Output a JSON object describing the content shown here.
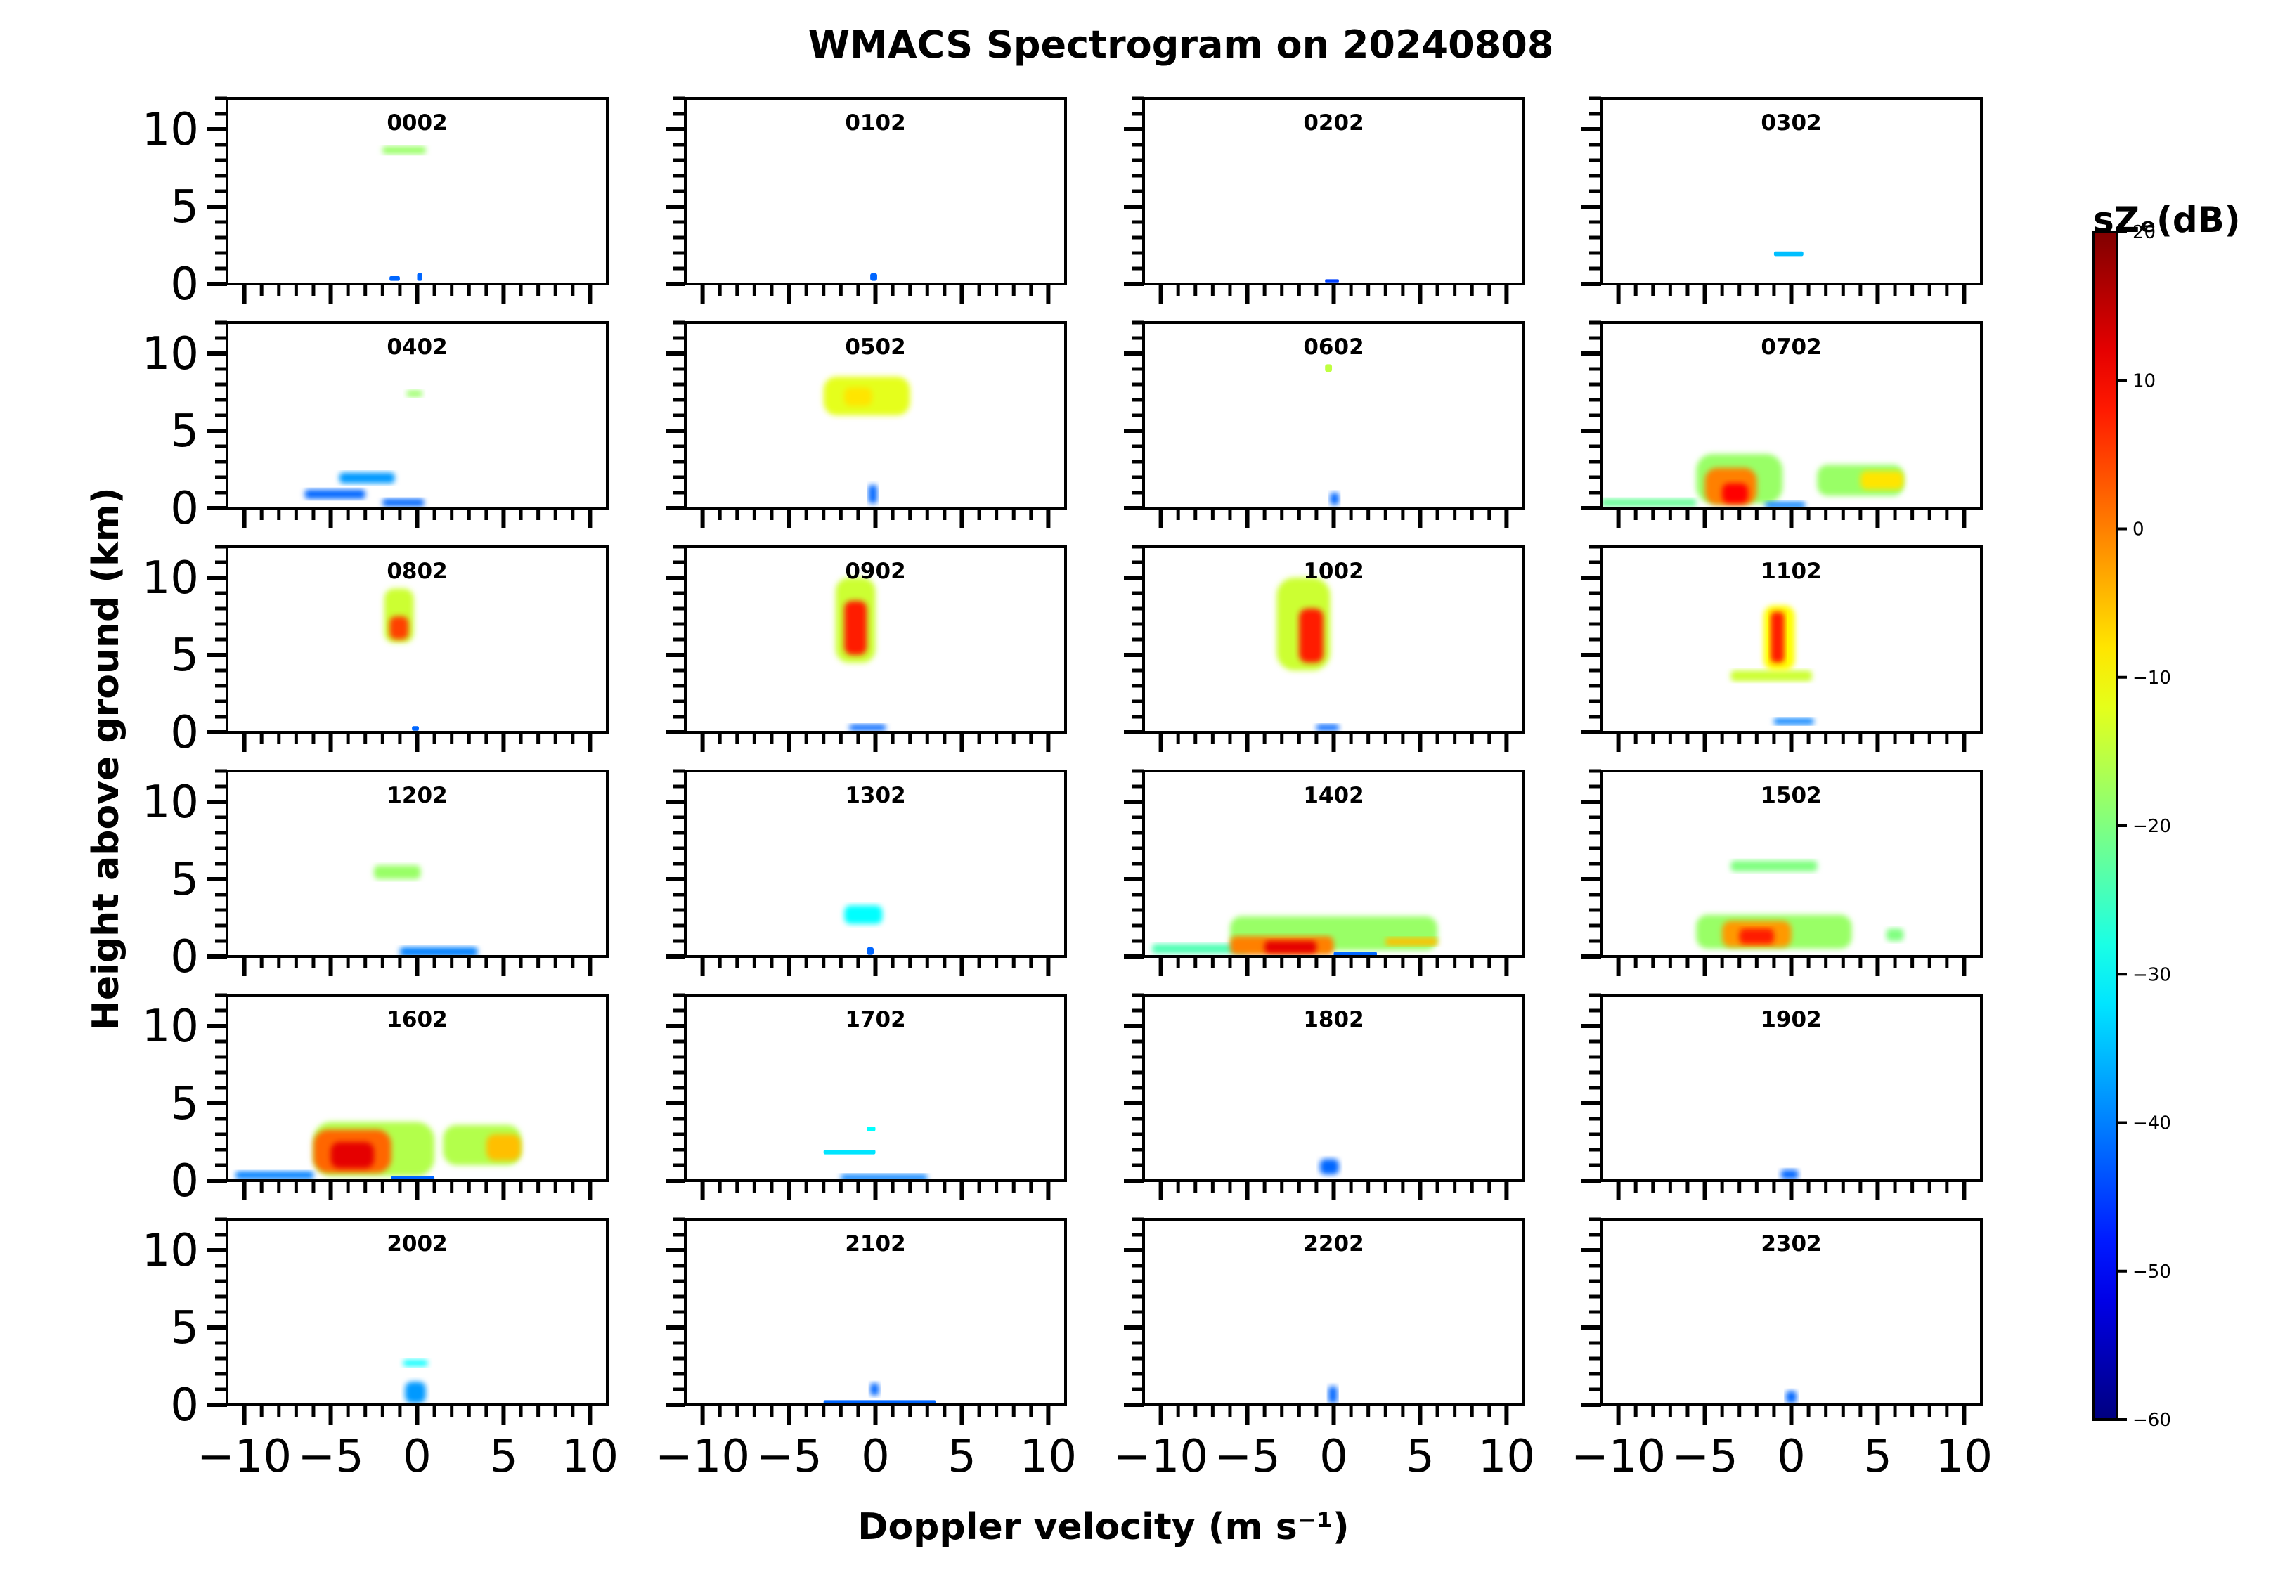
{
  "chart_data": {
    "type": "heatmap",
    "title": "WMACS Spectrogram on 20240808",
    "xlabel": "Doppler velocity (m s⁻¹)",
    "ylabel": "Height above ground (km)",
    "xlim": [
      -11,
      11
    ],
    "ylim": [
      0,
      12
    ],
    "xticks": [
      -10,
      -5,
      0,
      5,
      10
    ],
    "xtick_labels": [
      "−10",
      "−5",
      "0",
      "5",
      "10"
    ],
    "yticks": [
      0,
      5,
      10
    ],
    "ytick_labels": [
      "0",
      "5",
      "10"
    ],
    "grid": false,
    "colorbar": {
      "label": "sZₑ(dB)",
      "min": -60,
      "max": 20,
      "ticks": [
        -60,
        -50,
        -40,
        -30,
        -20,
        -10,
        0,
        10,
        20
      ],
      "tick_labels": [
        "−60",
        "−50",
        "−40",
        "−30",
        "−20",
        "−10",
        "0",
        "10",
        "20"
      ],
      "colormap": "jet"
    },
    "panels": [
      {
        "title": "0002",
        "blobs": [
          {
            "x": [
              -2.0,
              0.5
            ],
            "y": [
              8.4,
              8.9
            ],
            "db": -18
          },
          {
            "x": [
              -1.6,
              -1.0
            ],
            "y": [
              0.2,
              0.5
            ],
            "db": -42
          },
          {
            "x": [
              0.0,
              0.3
            ],
            "y": [
              0.2,
              0.7
            ],
            "db": -42
          }
        ]
      },
      {
        "title": "0102",
        "blobs": [
          {
            "x": [
              -0.3,
              0.1
            ],
            "y": [
              0.2,
              0.7
            ],
            "db": -42
          }
        ]
      },
      {
        "title": "0202",
        "blobs": [
          {
            "x": [
              -0.5,
              0.3
            ],
            "y": [
              0.1,
              0.3
            ],
            "db": -45
          }
        ]
      },
      {
        "title": "0302",
        "blobs": [
          {
            "x": [
              -1.0,
              0.7
            ],
            "y": [
              1.8,
              2.1
            ],
            "db": -35
          }
        ]
      },
      {
        "title": "0402",
        "blobs": [
          {
            "x": [
              -0.6,
              0.3
            ],
            "y": [
              7.2,
              7.6
            ],
            "db": -18
          },
          {
            "x": [
              -4.5,
              -1.3
            ],
            "y": [
              1.6,
              2.3
            ],
            "db": -38
          },
          {
            "x": [
              -6.5,
              -3.0
            ],
            "y": [
              0.6,
              1.2
            ],
            "db": -42
          },
          {
            "x": [
              -2.0,
              0.4
            ],
            "y": [
              0.1,
              0.6
            ],
            "db": -42
          }
        ]
      },
      {
        "title": "0502",
        "blobs": [
          {
            "x": [
              -3.0,
              2.0
            ],
            "y": [
              6.0,
              8.5
            ],
            "db": -12
          },
          {
            "x": [
              -1.8,
              -0.2
            ],
            "y": [
              6.6,
              7.8
            ],
            "db": -8
          },
          {
            "x": [
              -0.4,
              0.1
            ],
            "y": [
              0.3,
              1.5
            ],
            "db": -42
          }
        ]
      },
      {
        "title": "0602",
        "blobs": [
          {
            "x": [
              -0.5,
              -0.1
            ],
            "y": [
              8.8,
              9.3
            ],
            "db": -15
          },
          {
            "x": [
              -0.2,
              0.3
            ],
            "y": [
              0.2,
              1.0
            ],
            "db": -42
          }
        ]
      },
      {
        "title": "0702",
        "blobs": [
          {
            "x": [
              -5.5,
              -0.5
            ],
            "y": [
              0.3,
              3.5
            ],
            "db": -18
          },
          {
            "x": [
              -5.0,
              -2.0
            ],
            "y": [
              0.2,
              2.6
            ],
            "db": 0
          },
          {
            "x": [
              -4.0,
              -2.5
            ],
            "y": [
              0.3,
              1.6
            ],
            "db": 10
          },
          {
            "x": [
              -11.0,
              -5.5
            ],
            "y": [
              0.1,
              0.6
            ],
            "db": -22
          },
          {
            "x": [
              1.5,
              6.5
            ],
            "y": [
              0.8,
              2.8
            ],
            "db": -18
          },
          {
            "x": [
              4.0,
              6.5
            ],
            "y": [
              1.2,
              2.4
            ],
            "db": -8
          },
          {
            "x": [
              -1.5,
              0.8
            ],
            "y": [
              0.0,
              0.4
            ],
            "db": -40
          }
        ]
      },
      {
        "title": "0802",
        "blobs": [
          {
            "x": [
              -1.9,
              -0.2
            ],
            "y": [
              5.8,
              9.3
            ],
            "db": -14
          },
          {
            "x": [
              -1.6,
              -0.5
            ],
            "y": [
              6.0,
              7.5
            ],
            "db": 5
          },
          {
            "x": [
              -0.3,
              0.1
            ],
            "y": [
              0.1,
              0.4
            ],
            "db": -42
          }
        ]
      },
      {
        "title": "0902",
        "blobs": [
          {
            "x": [
              -2.3,
              0.0
            ],
            "y": [
              4.5,
              10.0
            ],
            "db": -14
          },
          {
            "x": [
              -1.8,
              -0.5
            ],
            "y": [
              5.0,
              8.5
            ],
            "db": 8
          },
          {
            "x": [
              -1.5,
              0.6
            ],
            "y": [
              0.1,
              0.5
            ],
            "db": -42
          }
        ]
      },
      {
        "title": "1002",
        "blobs": [
          {
            "x": [
              -3.3,
              -0.2
            ],
            "y": [
              4.0,
              10.0
            ],
            "db": -14
          },
          {
            "x": [
              -2.0,
              -0.6
            ],
            "y": [
              4.5,
              8.0
            ],
            "db": 8
          },
          {
            "x": [
              -1.0,
              0.3
            ],
            "y": [
              0.1,
              0.5
            ],
            "db": -42
          }
        ]
      },
      {
        "title": "1102",
        "blobs": [
          {
            "x": [
              -3.5,
              1.2
            ],
            "y": [
              3.3,
              4.0
            ],
            "db": -14
          },
          {
            "x": [
              -1.6,
              0.2
            ],
            "y": [
              4.0,
              8.2
            ],
            "db": -10
          },
          {
            "x": [
              -1.2,
              -0.4
            ],
            "y": [
              4.5,
              7.8
            ],
            "db": 8
          },
          {
            "x": [
              -1.0,
              1.3
            ],
            "y": [
              0.5,
              0.9
            ],
            "db": -40
          }
        ]
      },
      {
        "title": "1202",
        "blobs": [
          {
            "x": [
              -2.5,
              0.2
            ],
            "y": [
              5.0,
              5.9
            ],
            "db": -18
          },
          {
            "x": [
              -1.0,
              3.5
            ],
            "y": [
              0.0,
              0.6
            ],
            "db": -40
          }
        ]
      },
      {
        "title": "1302",
        "blobs": [
          {
            "x": [
              -1.8,
              0.4
            ],
            "y": [
              2.1,
              3.3
            ],
            "db": -30
          },
          {
            "x": [
              -0.5,
              -0.1
            ],
            "y": [
              0.1,
              0.6
            ],
            "db": -42
          }
        ]
      },
      {
        "title": "1402",
        "blobs": [
          {
            "x": [
              -6.0,
              6.0
            ],
            "y": [
              0.4,
              2.6
            ],
            "db": -18
          },
          {
            "x": [
              -10.5,
              -5.0
            ],
            "y": [
              0.2,
              0.8
            ],
            "db": -24
          },
          {
            "x": [
              -6.0,
              0.0
            ],
            "y": [
              0.1,
              1.3
            ],
            "db": 0
          },
          {
            "x": [
              -4.0,
              -1.0
            ],
            "y": [
              0.2,
              1.0
            ],
            "db": 12
          },
          {
            "x": [
              3.0,
              6.0
            ],
            "y": [
              0.7,
              1.2
            ],
            "db": -5
          },
          {
            "x": [
              0.0,
              2.5
            ],
            "y": [
              0.0,
              0.3
            ],
            "db": -42
          }
        ]
      },
      {
        "title": "1502",
        "blobs": [
          {
            "x": [
              -5.5,
              3.5
            ],
            "y": [
              0.5,
              2.7
            ],
            "db": -18
          },
          {
            "x": [
              -4.0,
              0.0
            ],
            "y": [
              0.6,
              2.3
            ],
            "db": -2
          },
          {
            "x": [
              -3.0,
              -1.0
            ],
            "y": [
              0.8,
              1.8
            ],
            "db": 8
          },
          {
            "x": [
              -3.5,
              1.5
            ],
            "y": [
              5.5,
              6.2
            ],
            "db": -20
          },
          {
            "x": [
              5.5,
              6.5
            ],
            "y": [
              1.0,
              1.8
            ],
            "db": -20
          }
        ]
      },
      {
        "title": "1602",
        "blobs": [
          {
            "x": [
              -6.0,
              1.0
            ],
            "y": [
              0.3,
              3.8
            ],
            "db": -16
          },
          {
            "x": [
              -6.0,
              -1.5
            ],
            "y": [
              0.5,
              3.3
            ],
            "db": 2
          },
          {
            "x": [
              -5.0,
              -2.5
            ],
            "y": [
              0.8,
              2.5
            ],
            "db": 12
          },
          {
            "x": [
              1.5,
              6.0
            ],
            "y": [
              1.0,
              3.6
            ],
            "db": -16
          },
          {
            "x": [
              4.0,
              6.0
            ],
            "y": [
              1.3,
              3.0
            ],
            "db": -5
          },
          {
            "x": [
              -10.5,
              -6.0
            ],
            "y": [
              0.1,
              0.6
            ],
            "db": -40
          },
          {
            "x": [
              -1.5,
              1.0
            ],
            "y": [
              0.0,
              0.3
            ],
            "db": -42
          }
        ]
      },
      {
        "title": "1702",
        "blobs": [
          {
            "x": [
              -3.0,
              0.0
            ],
            "y": [
              1.7,
              2.0
            ],
            "db": -32
          },
          {
            "x": [
              -0.5,
              0.0
            ],
            "y": [
              3.2,
              3.5
            ],
            "db": -30
          },
          {
            "x": [
              -2.0,
              3.0
            ],
            "y": [
              0.0,
              0.4
            ],
            "db": -40
          }
        ]
      },
      {
        "title": "1802",
        "blobs": [
          {
            "x": [
              -0.8,
              0.3
            ],
            "y": [
              0.4,
              1.4
            ],
            "db": -42
          }
        ]
      },
      {
        "title": "1902",
        "blobs": [
          {
            "x": [
              -0.6,
              0.4
            ],
            "y": [
              0.1,
              0.7
            ],
            "db": -42
          }
        ]
      },
      {
        "title": "2002",
        "blobs": [
          {
            "x": [
              -0.8,
              0.6
            ],
            "y": [
              2.5,
              2.9
            ],
            "db": -30
          },
          {
            "x": [
              -0.7,
              0.5
            ],
            "y": [
              0.1,
              1.5
            ],
            "db": -38
          }
        ]
      },
      {
        "title": "2102",
        "blobs": [
          {
            "x": [
              -3.0,
              3.5
            ],
            "y": [
              0.0,
              0.3
            ],
            "db": -42
          },
          {
            "x": [
              -0.3,
              0.2
            ],
            "y": [
              0.6,
              1.4
            ],
            "db": -42
          }
        ]
      },
      {
        "title": "2202",
        "blobs": [
          {
            "x": [
              -0.3,
              0.2
            ],
            "y": [
              0.1,
              1.2
            ],
            "db": -42
          }
        ]
      },
      {
        "title": "2302",
        "blobs": [
          {
            "x": [
              -0.3,
              0.3
            ],
            "y": [
              0.1,
              0.9
            ],
            "db": -42
          }
        ]
      }
    ]
  }
}
